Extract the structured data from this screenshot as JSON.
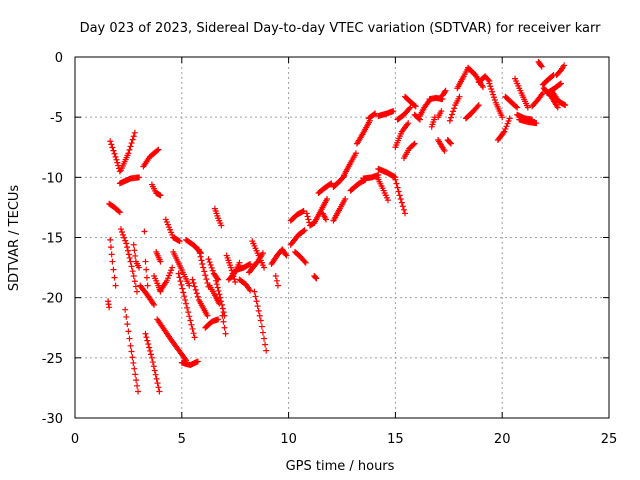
{
  "chart_data": {
    "type": "scatter",
    "title": "Day 023 of 2023, Sidereal Day-to-day VTEC variation (SDTVAR) for receiver karr",
    "xlabel": "GPS time / hours",
    "ylabel": "SDTVAR / TECUs",
    "xlim": [
      0,
      25
    ],
    "ylim": [
      -30,
      0
    ],
    "xticks": [
      0,
      5,
      10,
      15,
      20,
      25
    ],
    "yticks": [
      0,
      -5,
      -10,
      -15,
      -20,
      -25,
      -30
    ],
    "grid": true,
    "marker": "+",
    "color": "#ff0000",
    "segments": [
      [
        [
          1.65,
          -7.0
        ],
        [
          1.9,
          -8.3
        ],
        [
          2.1,
          -9.5
        ]
      ],
      [
        [
          2.15,
          -9.4
        ],
        [
          2.5,
          -8.0
        ],
        [
          2.8,
          -6.3
        ]
      ],
      [
        [
          2.1,
          -10.5
        ],
        [
          2.6,
          -10.1
        ],
        [
          3.0,
          -10.0
        ]
      ],
      [
        [
          3.2,
          -9.1
        ],
        [
          3.5,
          -8.3
        ],
        [
          3.9,
          -7.7
        ]
      ],
      [
        [
          3.6,
          -10.6
        ],
        [
          3.8,
          -11.3
        ],
        [
          4.0,
          -11.5
        ]
      ],
      [
        [
          1.6,
          -12.2
        ],
        [
          1.85,
          -12.5
        ],
        [
          2.1,
          -12.9
        ]
      ],
      [
        [
          1.65,
          -15.2
        ],
        [
          1.75,
          -17.0
        ],
        [
          1.9,
          -19.0
        ]
      ],
      [
        [
          1.55,
          -20.3
        ],
        [
          1.6,
          -20.8
        ]
      ],
      [
        [
          2.15,
          -14.3
        ],
        [
          2.4,
          -15.5
        ],
        [
          2.6,
          -17.0
        ]
      ],
      [
        [
          2.6,
          -17.0
        ],
        [
          2.75,
          -18.2
        ],
        [
          2.9,
          -19.5
        ]
      ],
      [
        [
          2.35,
          -21.0
        ],
        [
          2.6,
          -24.0
        ],
        [
          2.95,
          -27.8
        ]
      ],
      [
        [
          2.75,
          -15.6
        ],
        [
          2.85,
          -17.0
        ],
        [
          3.0,
          -17.5
        ]
      ],
      [
        [
          3.25,
          -14.5
        ],
        [
          3.3,
          -17.0
        ],
        [
          3.4,
          -19.0
        ]
      ],
      [
        [
          3.05,
          -19.0
        ],
        [
          3.4,
          -19.8
        ],
        [
          3.7,
          -20.6
        ]
      ],
      [
        [
          3.3,
          -23.0
        ],
        [
          3.6,
          -25.0
        ],
        [
          3.95,
          -27.8
        ]
      ],
      [
        [
          3.8,
          -16.2
        ],
        [
          4.0,
          -17.0
        ]
      ],
      [
        [
          3.7,
          -18.2
        ],
        [
          3.9,
          -19.0
        ],
        [
          4.0,
          -19.5
        ]
      ],
      [
        [
          4.0,
          -19.4
        ],
        [
          4.3,
          -18.6
        ],
        [
          4.55,
          -17.5
        ]
      ],
      [
        [
          4.25,
          -13.5
        ],
        [
          4.6,
          -15.0
        ],
        [
          4.9,
          -15.3
        ]
      ],
      [
        [
          4.6,
          -16.2
        ],
        [
          5.0,
          -17.7
        ],
        [
          5.35,
          -19.0
        ]
      ],
      [
        [
          3.85,
          -21.8
        ],
        [
          4.5,
          -23.5
        ],
        [
          5.2,
          -25.2
        ]
      ],
      [
        [
          5.0,
          -25.4
        ],
        [
          5.4,
          -25.6
        ],
        [
          5.75,
          -25.3
        ]
      ],
      [
        [
          4.85,
          -18.0
        ],
        [
          5.2,
          -20.5
        ],
        [
          5.6,
          -23.3
        ]
      ],
      [
        [
          5.2,
          -15.2
        ],
        [
          5.6,
          -15.7
        ],
        [
          5.9,
          -16.3
        ]
      ],
      [
        [
          5.8,
          -16.0
        ],
        [
          6.0,
          -17.5
        ],
        [
          6.25,
          -19.1
        ]
      ],
      [
        [
          5.5,
          -18.5
        ],
        [
          5.8,
          -20.2
        ],
        [
          6.2,
          -21.5
        ]
      ],
      [
        [
          6.1,
          -22.5
        ],
        [
          6.4,
          -22.0
        ],
        [
          6.7,
          -21.8
        ]
      ],
      [
        [
          6.6,
          -18.6
        ],
        [
          6.8,
          -20.0
        ],
        [
          7.0,
          -21.5
        ]
      ],
      [
        [
          6.9,
          -21.5
        ],
        [
          7.0,
          -22.5
        ],
        [
          7.05,
          -23.0
        ]
      ],
      [
        [
          6.25,
          -16.8
        ],
        [
          6.5,
          -18.0
        ],
        [
          6.7,
          -18.5
        ]
      ],
      [
        [
          6.3,
          -19.0
        ],
        [
          6.55,
          -19.8
        ],
        [
          6.75,
          -20.5
        ]
      ],
      [
        [
          6.55,
          -12.6
        ],
        [
          6.7,
          -13.4
        ],
        [
          6.85,
          -14.0
        ]
      ],
      [
        [
          7.1,
          -16.5
        ],
        [
          7.3,
          -17.5
        ],
        [
          7.5,
          -18.7
        ]
      ],
      [
        [
          7.2,
          -18.5
        ],
        [
          7.45,
          -18.0
        ],
        [
          7.7,
          -17.1
        ]
      ],
      [
        [
          7.55,
          -17.7
        ],
        [
          7.9,
          -17.5
        ],
        [
          8.2,
          -17.2
        ]
      ],
      [
        [
          7.7,
          -18.5
        ],
        [
          8.0,
          -18.9
        ],
        [
          8.2,
          -19.4
        ]
      ],
      [
        [
          8.15,
          -17.9
        ],
        [
          8.55,
          -17.0
        ],
        [
          8.8,
          -16.3
        ]
      ],
      [
        [
          8.3,
          -15.3
        ],
        [
          8.6,
          -16.5
        ],
        [
          8.85,
          -17.5
        ]
      ],
      [
        [
          8.4,
          -19.5
        ],
        [
          8.7,
          -21.9
        ],
        [
          8.95,
          -24.4
        ]
      ],
      [
        [
          9.2,
          -17.2
        ],
        [
          9.5,
          -16.4
        ],
        [
          9.7,
          -16.0
        ]
      ],
      [
        [
          9.4,
          -18.2
        ],
        [
          9.5,
          -19.0
        ]
      ],
      [
        [
          9.7,
          -16.0
        ],
        [
          9.9,
          -16.5
        ]
      ],
      [
        [
          10.3,
          -16.2
        ],
        [
          10.55,
          -16.6
        ],
        [
          10.8,
          -17.1
        ]
      ],
      [
        [
          11.2,
          -18.2
        ],
        [
          11.3,
          -18.4
        ]
      ],
      [
        [
          10.1,
          -15.6
        ],
        [
          10.45,
          -14.8
        ],
        [
          10.75,
          -14.4
        ]
      ],
      [
        [
          10.1,
          -13.6
        ],
        [
          10.4,
          -13.1
        ],
        [
          10.7,
          -12.8
        ]
      ],
      [
        [
          10.85,
          -13.0
        ],
        [
          11.0,
          -14.0
        ],
        [
          11.2,
          -13.8
        ]
      ],
      [
        [
          11.2,
          -13.8
        ],
        [
          11.5,
          -12.8
        ],
        [
          11.8,
          -11.8
        ]
      ],
      [
        [
          11.4,
          -11.3
        ],
        [
          11.75,
          -10.8
        ],
        [
          12.0,
          -10.5
        ]
      ],
      [
        [
          11.6,
          -13.0
        ],
        [
          11.75,
          -13.5
        ]
      ],
      [
        [
          12.1,
          -13.6
        ],
        [
          12.4,
          -12.6
        ],
        [
          12.65,
          -11.8
        ]
      ],
      [
        [
          12.1,
          -10.8
        ],
        [
          12.4,
          -10.3
        ],
        [
          12.6,
          -9.9
        ]
      ],
      [
        [
          12.6,
          -9.8
        ],
        [
          12.9,
          -8.8
        ],
        [
          13.15,
          -8.0
        ]
      ],
      [
        [
          12.9,
          -11.1
        ],
        [
          13.3,
          -10.5
        ],
        [
          13.6,
          -10.2
        ]
      ],
      [
        [
          13.2,
          -7.2
        ],
        [
          13.5,
          -6.3
        ],
        [
          13.8,
          -5.3
        ]
      ],
      [
        [
          13.75,
          -5.1
        ],
        [
          14.05,
          -4.7
        ]
      ],
      [
        [
          13.5,
          -10.1
        ],
        [
          13.9,
          -10.0
        ],
        [
          14.2,
          -9.8
        ]
      ],
      [
        [
          14.15,
          -10.0
        ],
        [
          14.4,
          -10.9
        ],
        [
          14.65,
          -11.9
        ]
      ],
      [
        [
          14.2,
          -9.3
        ],
        [
          14.6,
          -9.6
        ],
        [
          15.0,
          -10.0
        ]
      ],
      [
        [
          15.0,
          -10.2
        ],
        [
          15.2,
          -11.5
        ],
        [
          15.45,
          -13.0
        ]
      ],
      [
        [
          15.1,
          -5.2
        ],
        [
          15.4,
          -4.8
        ],
        [
          15.7,
          -4.2
        ]
      ],
      [
        [
          14.2,
          -4.9
        ],
        [
          14.6,
          -4.7
        ],
        [
          14.9,
          -4.5
        ]
      ],
      [
        [
          15.0,
          -7.5
        ],
        [
          15.3,
          -6.2
        ],
        [
          15.6,
          -5.5
        ]
      ],
      [
        [
          15.45,
          -3.3
        ],
        [
          15.75,
          -3.8
        ],
        [
          15.95,
          -4.1
        ]
      ],
      [
        [
          15.4,
          -8.4
        ],
        [
          15.65,
          -7.6
        ],
        [
          15.9,
          -7.2
        ]
      ],
      [
        [
          15.9,
          -4.8
        ],
        [
          16.15,
          -5.2
        ]
      ],
      [
        [
          16.15,
          -4.9
        ],
        [
          16.35,
          -4.2
        ],
        [
          16.6,
          -3.6
        ]
      ],
      [
        [
          16.6,
          -3.5
        ],
        [
          16.9,
          -3.4
        ],
        [
          17.2,
          -3.5
        ]
      ],
      [
        [
          16.7,
          -5.8
        ],
        [
          16.85,
          -5.0
        ]
      ],
      [
        [
          17.2,
          -3.2
        ],
        [
          17.35,
          -2.8
        ]
      ],
      [
        [
          17.0,
          -5.0
        ],
        [
          17.15,
          -4.5
        ]
      ],
      [
        [
          17.0,
          -6.9
        ],
        [
          17.3,
          -7.8
        ]
      ],
      [
        [
          17.45,
          -6.9
        ],
        [
          17.6,
          -7.2
        ]
      ],
      [
        [
          17.55,
          -5.3
        ],
        [
          17.8,
          -4.0
        ],
        [
          18.0,
          -3.3
        ]
      ],
      [
        [
          18.3,
          -5.1
        ],
        [
          18.6,
          -4.6
        ],
        [
          18.9,
          -4.0
        ]
      ],
      [
        [
          17.9,
          -2.6
        ],
        [
          18.2,
          -1.6
        ],
        [
          18.4,
          -0.9
        ]
      ],
      [
        [
          18.4,
          -0.9
        ],
        [
          18.75,
          -1.5
        ],
        [
          19.1,
          -2.5
        ]
      ],
      [
        [
          18.9,
          -2.1
        ],
        [
          19.2,
          -1.6
        ],
        [
          19.4,
          -2.0
        ]
      ],
      [
        [
          19.4,
          -2.2
        ],
        [
          19.7,
          -3.8
        ],
        [
          20.0,
          -5.0
        ]
      ],
      [
        [
          19.8,
          -6.9
        ],
        [
          20.1,
          -6.2
        ],
        [
          20.35,
          -5.1
        ]
      ],
      [
        [
          20.15,
          -3.3
        ],
        [
          20.45,
          -3.8
        ],
        [
          20.7,
          -4.2
        ]
      ],
      [
        [
          20.6,
          -1.8
        ],
        [
          20.9,
          -3.0
        ],
        [
          21.2,
          -4.2
        ]
      ],
      [
        [
          20.7,
          -4.8
        ],
        [
          21.05,
          -5.1
        ],
        [
          21.4,
          -5.2
        ]
      ],
      [
        [
          20.8,
          -5.2
        ],
        [
          21.2,
          -5.4
        ],
        [
          21.6,
          -5.5
        ]
      ],
      [
        [
          21.4,
          -4.1
        ],
        [
          21.65,
          -3.6
        ],
        [
          21.9,
          -3.0
        ]
      ],
      [
        [
          21.9,
          -2.3
        ],
        [
          22.2,
          -1.8
        ],
        [
          22.4,
          -1.5
        ]
      ],
      [
        [
          21.95,
          -2.6
        ],
        [
          22.3,
          -3.3
        ],
        [
          22.6,
          -4.2
        ]
      ],
      [
        [
          21.7,
          -0.4
        ],
        [
          21.85,
          -0.8
        ]
      ],
      [
        [
          22.55,
          -1.5
        ],
        [
          22.75,
          -1.1
        ],
        [
          22.9,
          -0.7
        ]
      ],
      [
        [
          22.35,
          -2.9
        ],
        [
          22.65,
          -3.7
        ],
        [
          22.95,
          -4.0
        ]
      ],
      [
        [
          22.1,
          -3.0
        ],
        [
          22.45,
          -2.6
        ],
        [
          22.75,
          -2.2
        ]
      ]
    ]
  }
}
